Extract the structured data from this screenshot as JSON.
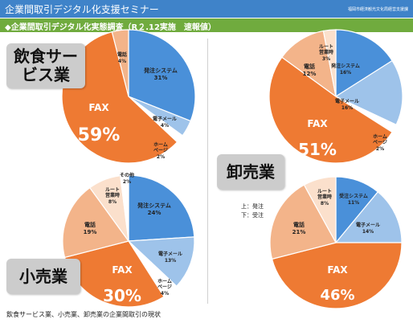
{
  "header": {
    "title": "企業間取引デジタル化支援セミナー",
    "org": "福岡市経済観光文化局経営支援課"
  },
  "subheader": {
    "title": "◆企業間取引デジタル化実態調査（R２.12実施　速報値）"
  },
  "legend": {
    "up": "上：発注",
    "down": "下：受注"
  },
  "footer": {
    "caption": "飲食サービス業、小売業、卸売業の企業間取引の現状"
  },
  "chart_data": [
    {
      "type": "pie",
      "category_label": "飲食サー\nビス業",
      "series": [
        {
          "name": "発注システム",
          "value": 31,
          "label": "31%"
        },
        {
          "name": "電子メール",
          "value": 4,
          "label": "4%"
        },
        {
          "name": "ホーム\nページ",
          "value": 2,
          "label": "2%"
        },
        {
          "name": "FAX",
          "value": 59,
          "label": "59%"
        },
        {
          "name": "電話",
          "value": 4,
          "label": "4%"
        }
      ]
    },
    {
      "type": "pie",
      "category_label": "小売業",
      "series": [
        {
          "name": "発注システム",
          "value": 24,
          "label": "24%"
        },
        {
          "name": "電子メール",
          "value": 13,
          "label": "13%"
        },
        {
          "name": "ホーム\nページ",
          "value": 4,
          "label": "4%"
        },
        {
          "name": "FAX",
          "value": 30,
          "label": "30%"
        },
        {
          "name": "電話",
          "value": 19,
          "label": "19%"
        },
        {
          "name": "ルート\n営業時",
          "value": 8,
          "label": "8%"
        },
        {
          "name": "その他",
          "value": 2,
          "label": "2%"
        }
      ]
    },
    {
      "type": "pie",
      "category_label": "卸売業（発注）",
      "series": [
        {
          "name": "発注システム",
          "value": 16,
          "label": "16%"
        },
        {
          "name": "電子メール",
          "value": 16,
          "label": "16%"
        },
        {
          "name": "ホーム\nページ",
          "value": 2,
          "label": "2%"
        },
        {
          "name": "FAX",
          "value": 51,
          "label": "51%"
        },
        {
          "name": "電話",
          "value": 12,
          "label": "12%"
        },
        {
          "name": "ルート\n営業時",
          "value": 3,
          "label": "3%"
        }
      ]
    },
    {
      "type": "pie",
      "category_label": "卸売業",
      "series": [
        {
          "name": "受注システム",
          "value": 11,
          "label": "11%"
        },
        {
          "name": "電子メール",
          "value": 14,
          "label": "14%"
        },
        {
          "name": "FAX",
          "value": 46,
          "label": "46%"
        },
        {
          "name": "電話",
          "value": 21,
          "label": "21%"
        },
        {
          "name": "ルート\n営業時",
          "value": 8,
          "label": "8%"
        }
      ]
    }
  ],
  "colors": {
    "system": "#4a90d9",
    "email": "#9ec3ea",
    "homepage": "#ffffff",
    "fax": "#ee7a33",
    "phone": "#f3b48a",
    "route": "#fbe0cc",
    "other": "#ffffff",
    "header_bg": "#3f83c9",
    "subheader_bg": "#70ab3e"
  }
}
